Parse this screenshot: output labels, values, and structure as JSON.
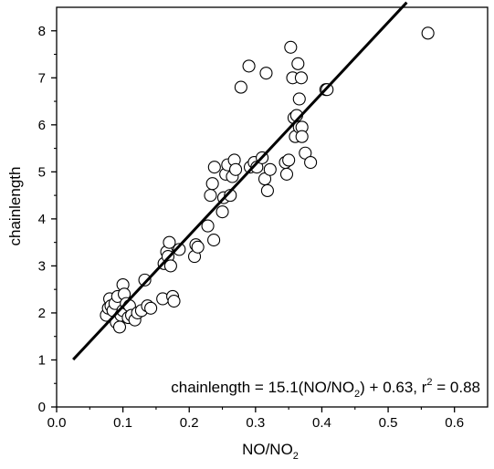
{
  "chart_data": {
    "type": "scatter",
    "xlabel": "NO/NO",
    "xlabel_sub": "2",
    "ylabel": "chainlength",
    "xlim": [
      0.0,
      0.65
    ],
    "ylim": [
      0,
      8.5
    ],
    "x_ticks": [
      0.0,
      0.1,
      0.2,
      0.3,
      0.4,
      0.5,
      0.6
    ],
    "x_tick_labels": [
      "0.0",
      "0.1",
      "0.2",
      "0.3",
      "0.4",
      "0.5",
      "0.6"
    ],
    "y_ticks": [
      0,
      1,
      2,
      3,
      4,
      5,
      6,
      7,
      8
    ],
    "y_tick_labels": [
      "0",
      "1",
      "2",
      "3",
      "4",
      "5",
      "6",
      "7",
      "8"
    ],
    "grid": false,
    "marker": "open-circle",
    "fit": {
      "slope": 15.1,
      "intercept": 0.63,
      "r2": 0.88,
      "x_range": [
        0.025,
        0.528
      ]
    },
    "annotation": {
      "part1": "chainlength = 15.1(NO/NO",
      "sub": "2",
      "part2": ") + 0.63, r",
      "sup": "2",
      "part3": " = 0.88"
    },
    "points": [
      {
        "x": 0.075,
        "y": 1.95
      },
      {
        "x": 0.078,
        "y": 2.1
      },
      {
        "x": 0.08,
        "y": 2.3
      },
      {
        "x": 0.082,
        "y": 2.15
      },
      {
        "x": 0.085,
        "y": 2.05
      },
      {
        "x": 0.088,
        "y": 2.2
      },
      {
        "x": 0.09,
        "y": 1.8
      },
      {
        "x": 0.092,
        "y": 2.35
      },
      {
        "x": 0.095,
        "y": 1.7
      },
      {
        "x": 0.097,
        "y": 1.95
      },
      {
        "x": 0.1,
        "y": 2.05
      },
      {
        "x": 0.1,
        "y": 2.6
      },
      {
        "x": 0.102,
        "y": 2.4
      },
      {
        "x": 0.105,
        "y": 2.2
      },
      {
        "x": 0.108,
        "y": 1.9
      },
      {
        "x": 0.11,
        "y": 2.15
      },
      {
        "x": 0.113,
        "y": 1.95
      },
      {
        "x": 0.118,
        "y": 1.85
      },
      {
        "x": 0.122,
        "y": 2.0
      },
      {
        "x": 0.128,
        "y": 2.05
      },
      {
        "x": 0.133,
        "y": 2.7
      },
      {
        "x": 0.137,
        "y": 2.15
      },
      {
        "x": 0.142,
        "y": 2.1
      },
      {
        "x": 0.16,
        "y": 2.3
      },
      {
        "x": 0.162,
        "y": 3.05
      },
      {
        "x": 0.166,
        "y": 3.3
      },
      {
        "x": 0.168,
        "y": 3.2
      },
      {
        "x": 0.17,
        "y": 3.5
      },
      {
        "x": 0.172,
        "y": 3.0
      },
      {
        "x": 0.175,
        "y": 2.35
      },
      {
        "x": 0.177,
        "y": 2.25
      },
      {
        "x": 0.185,
        "y": 3.35
      },
      {
        "x": 0.208,
        "y": 3.2
      },
      {
        "x": 0.21,
        "y": 3.45
      },
      {
        "x": 0.213,
        "y": 3.4
      },
      {
        "x": 0.228,
        "y": 3.85
      },
      {
        "x": 0.232,
        "y": 4.5
      },
      {
        "x": 0.235,
        "y": 4.75
      },
      {
        "x": 0.237,
        "y": 3.55
      },
      {
        "x": 0.238,
        "y": 5.1
      },
      {
        "x": 0.25,
        "y": 4.15
      },
      {
        "x": 0.252,
        "y": 4.45
      },
      {
        "x": 0.255,
        "y": 4.95
      },
      {
        "x": 0.258,
        "y": 5.15
      },
      {
        "x": 0.262,
        "y": 4.5
      },
      {
        "x": 0.265,
        "y": 4.9
      },
      {
        "x": 0.268,
        "y": 5.25
      },
      {
        "x": 0.27,
        "y": 5.05
      },
      {
        "x": 0.278,
        "y": 6.8
      },
      {
        "x": 0.29,
        "y": 7.25
      },
      {
        "x": 0.292,
        "y": 5.1
      },
      {
        "x": 0.298,
        "y": 5.2
      },
      {
        "x": 0.302,
        "y": 5.1
      },
      {
        "x": 0.31,
        "y": 5.3
      },
      {
        "x": 0.314,
        "y": 4.85
      },
      {
        "x": 0.316,
        "y": 7.1
      },
      {
        "x": 0.318,
        "y": 4.6
      },
      {
        "x": 0.322,
        "y": 5.05
      },
      {
        "x": 0.345,
        "y": 5.2
      },
      {
        "x": 0.347,
        "y": 4.95
      },
      {
        "x": 0.35,
        "y": 5.25
      },
      {
        "x": 0.353,
        "y": 7.65
      },
      {
        "x": 0.356,
        "y": 7.0
      },
      {
        "x": 0.358,
        "y": 6.15
      },
      {
        "x": 0.36,
        "y": 5.75
      },
      {
        "x": 0.362,
        "y": 6.2
      },
      {
        "x": 0.364,
        "y": 7.3
      },
      {
        "x": 0.366,
        "y": 6.55
      },
      {
        "x": 0.366,
        "y": 5.95
      },
      {
        "x": 0.369,
        "y": 7.0
      },
      {
        "x": 0.37,
        "y": 5.95
      },
      {
        "x": 0.37,
        "y": 5.75
      },
      {
        "x": 0.375,
        "y": 5.4
      },
      {
        "x": 0.383,
        "y": 5.2
      },
      {
        "x": 0.406,
        "y": 6.75
      },
      {
        "x": 0.408,
        "y": 6.75
      },
      {
        "x": 0.56,
        "y": 7.95
      }
    ]
  }
}
